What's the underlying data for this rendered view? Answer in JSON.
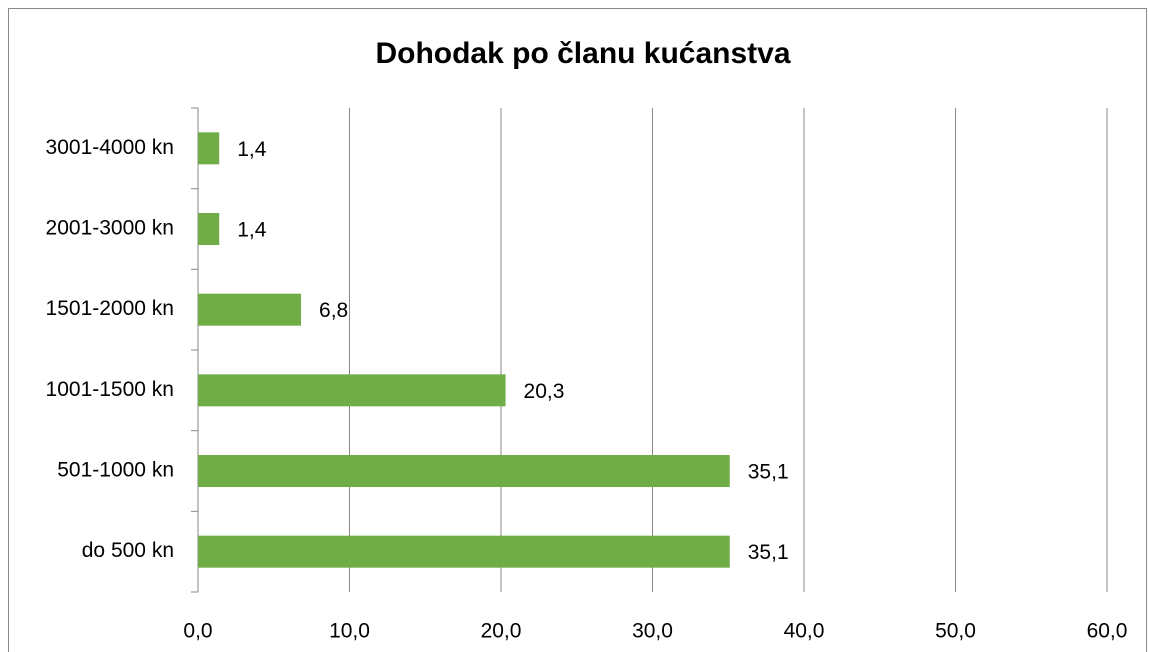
{
  "chart_data": {
    "type": "bar",
    "orientation": "horizontal",
    "title": "Dohodak po članu kućanstva",
    "categories": [
      "do 500 kn",
      "501-1000 kn",
      "1001-1500 kn",
      "1501-2000 kn",
      "2001-3000 kn",
      "3001-4000 kn"
    ],
    "values": [
      35.1,
      35.1,
      20.3,
      6.8,
      1.4,
      1.4
    ],
    "value_labels": [
      "35,1",
      "35,1",
      "20,3",
      "6,8",
      "1,4",
      "1,4"
    ],
    "color": "#70ad47",
    "xlim": [
      0,
      60
    ],
    "xticks": [
      {
        "value": 0,
        "label": "0,0"
      },
      {
        "value": 10,
        "label": "10,0"
      },
      {
        "value": 20,
        "label": "20,0"
      },
      {
        "value": 30,
        "label": "30,0"
      },
      {
        "value": 40,
        "label": "40,0"
      },
      {
        "value": 50,
        "label": "50,0"
      },
      {
        "value": 60,
        "label": "60,0"
      }
    ],
    "grid": true
  }
}
